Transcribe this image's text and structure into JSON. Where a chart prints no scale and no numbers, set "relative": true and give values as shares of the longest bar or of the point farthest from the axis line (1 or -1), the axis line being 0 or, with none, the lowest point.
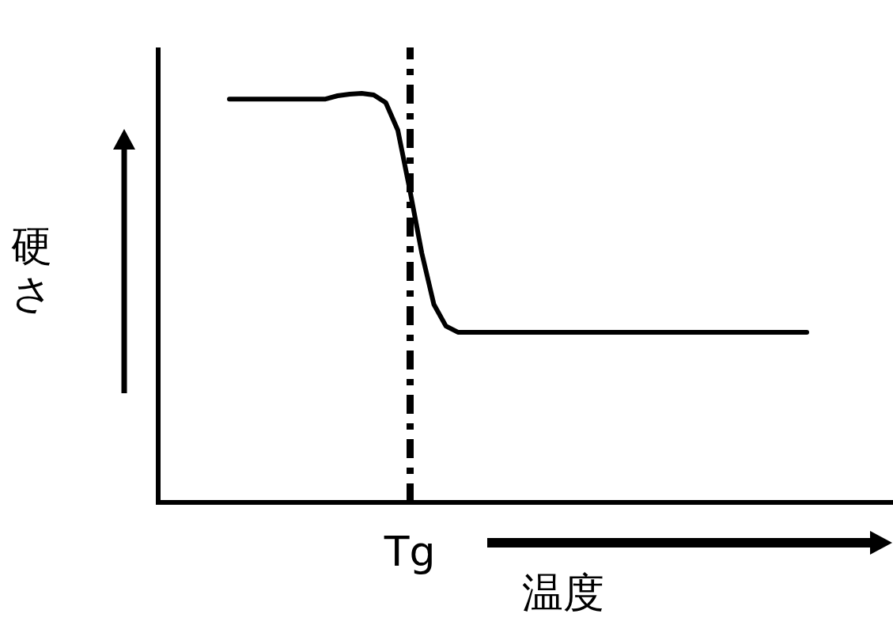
{
  "chart_data": {
    "type": "line",
    "relative": true,
    "xlabel": "温度",
    "ylabel": "硬さ",
    "categories": [
      null,
      null,
      null,
      null,
      null,
      null,
      null,
      null,
      null,
      null,
      null,
      null,
      null,
      null,
      null,
      null,
      null,
      null,
      null,
      null,
      null,
      null,
      null,
      null,
      null,
      null,
      null,
      null,
      null,
      null,
      null,
      null,
      null,
      null,
      null,
      null,
      null,
      null,
      null,
      null,
      null,
      null,
      null,
      null,
      null,
      null,
      null,
      null,
      null
    ],
    "series": [
      {
        "color": "#000000",
        "values": [
          0.986,
          0.986,
          0.986,
          0.986,
          0.986,
          0.986,
          0.986,
          0.986,
          0.986,
          0.994,
          0.998,
          1.0,
          0.996,
          0.977,
          0.91,
          0.764,
          0.609,
          0.484,
          0.431,
          0.416,
          0.416,
          0.416,
          0.416,
          0.416,
          0.416,
          0.416,
          0.416,
          0.416,
          0.416,
          0.416,
          0.416,
          0.416,
          0.416,
          0.416,
          0.416,
          0.416,
          0.416,
          0.416,
          0.416,
          0.416,
          0.416,
          0.416,
          0.416,
          0.416,
          0.416,
          0.416,
          0.416,
          0.416,
          0.416
        ]
      }
    ],
    "annotations": [
      "Tg"
    ],
    "marker": "none",
    "line_style": "solid"
  }
}
